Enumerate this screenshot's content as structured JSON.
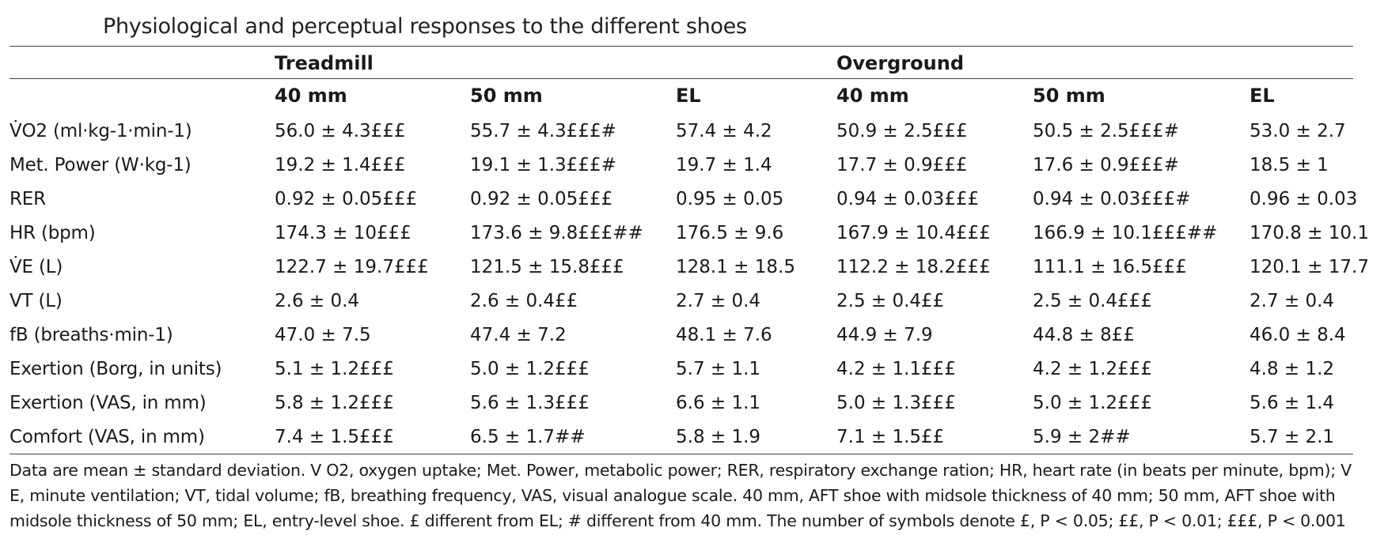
{
  "table": {
    "title": "Physiological and perceptual responses to the different shoes",
    "groups": [
      "Treadmill",
      "Overground"
    ],
    "columns": [
      "40 mm",
      "50 mm",
      "EL",
      "40 mm",
      "50 mm",
      "EL"
    ],
    "rows": [
      {
        "label": "V̇O2 (ml·kg-1·min-1)",
        "values": [
          "56.0 ± 4.3£££",
          "55.7 ± 4.3£££#",
          "57.4 ± 4.2",
          "50.9 ± 2.5£££",
          "50.5 ± 2.5£££#",
          "53.0 ± 2.7"
        ]
      },
      {
        "label": "Met. Power (W·kg-1)",
        "values": [
          "19.2 ± 1.4£££",
          "19.1 ± 1.3£££#",
          "19.7 ± 1.4",
          "17.7 ± 0.9£££",
          "17.6 ± 0.9£££#",
          "18.5 ± 1"
        ]
      },
      {
        "label": "RER",
        "values": [
          "0.92 ± 0.05£££",
          "0.92 ± 0.05£££",
          "0.95 ± 0.05",
          "0.94 ± 0.03£££",
          "0.94 ± 0.03£££#",
          "0.96 ± 0.03"
        ]
      },
      {
        "label": "HR (bpm)",
        "values": [
          "174.3 ± 10£££",
          "173.6 ± 9.8£££##",
          "176.5 ± 9.6",
          "167.9 ± 10.4£££",
          "166.9 ± 10.1£££##",
          "170.8 ± 10.1"
        ]
      },
      {
        "label": "V̇E (L)",
        "values": [
          "122.7 ± 19.7£££",
          "121.5 ± 15.8£££",
          "128.1 ± 18.5",
          "112.2 ± 18.2£££",
          "111.1 ± 16.5£££",
          "120.1 ± 17.7"
        ]
      },
      {
        "label": "VT (L)",
        "values": [
          "2.6 ± 0.4",
          "2.6 ± 0.4££",
          "2.7 ± 0.4",
          "2.5 ± 0.4££",
          "2.5 ± 0.4£££",
          "2.7 ± 0.4"
        ]
      },
      {
        "label": "fB (breaths·min-1)",
        "values": [
          "47.0 ± 7.5",
          "47.4 ± 7.2",
          "48.1 ± 7.6",
          "44.9 ± 7.9",
          "44.8 ± 8££",
          "46.0 ± 8.4"
        ]
      },
      {
        "label": "Exertion (Borg, in units)",
        "values": [
          "5.1 ± 1.2£££",
          "5.0 ± 1.2£££",
          "5.7 ± 1.1",
          "4.2 ± 1.1£££",
          "4.2 ± 1.2£££",
          "4.8 ± 1.2"
        ]
      },
      {
        "label": "Exertion (VAS, in mm)",
        "values": [
          "5.8 ± 1.2£££",
          "5.6 ± 1.3£££",
          "6.6 ± 1.1",
          "5.0 ± 1.3£££",
          "5.0 ± 1.2£££",
          "5.6 ± 1.4"
        ]
      },
      {
        "label": "Comfort (VAS, in mm)",
        "values": [
          "7.4 ± 1.5£££",
          "6.5 ± 1.7##",
          "5.8 ± 1.9",
          "7.1 ± 1.5££",
          "5.9 ± 2##",
          "5.7 ± 2.1"
        ]
      }
    ],
    "footnote": "Data are mean ± standard deviation. V O2, oxygen uptake; Met. Power, metabolic power; RER, respiratory exchange ration; HR, heart rate (in beats per minute, bpm); V E, minute ventilation; VT, tidal volume; fB, breathing frequency, VAS, visual analogue scale. 40 mm, AFT shoe with midsole thickness of 40 mm; 50 mm, AFT shoe with midsole thickness of 50 mm; EL, entry-level shoe. £ different from EL; # different from 40 mm. The number of symbols denote £, P < 0.05; ££, P < 0.01; £££, P < 0.001"
  }
}
